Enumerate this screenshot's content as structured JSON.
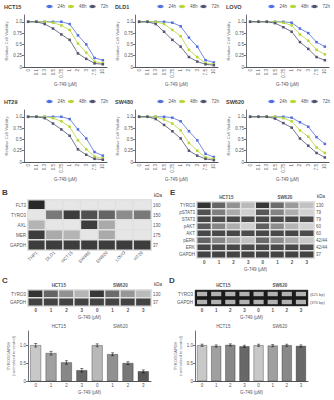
{
  "chart_data": [
    {
      "type": "line",
      "title": "HCT15",
      "categories": [
        "0",
        "0.1",
        "0.3",
        "0.5",
        "0.75",
        "1",
        "2",
        "3",
        "7.5",
        "10"
      ],
      "series": [
        {
          "name": "24h",
          "values": [
            1.0,
            1.0,
            1.0,
            1.0,
            1.0,
            0.95,
            0.7,
            0.5,
            0.2,
            0.15
          ]
        },
        {
          "name": "48h",
          "values": [
            1.0,
            1.0,
            1.0,
            0.98,
            0.92,
            0.82,
            0.52,
            0.32,
            0.12,
            0.08
          ]
        },
        {
          "name": "72h",
          "values": [
            1.0,
            1.0,
            0.95,
            0.85,
            0.72,
            0.6,
            0.3,
            0.18,
            0.08,
            0.06
          ]
        }
      ],
      "xlabel": "G-749 (μM)",
      "ylabel": "Relative Cell Viability",
      "ylim": [
        0,
        1.15
      ],
      "yticks": [
        0,
        0.25,
        0.5,
        0.75,
        {
          "value": 1,
          "label": "1.0"
        }
      ],
      "legend": "upper right",
      "marker": "square",
      "grid": false
    },
    {
      "type": "line",
      "title": "DLD1",
      "categories": [
        "0",
        "0.1",
        "0.3",
        "0.5",
        "0.75",
        "1",
        "2",
        "3",
        "7.5",
        "10"
      ],
      "series": [
        {
          "name": "24h",
          "values": [
            1.0,
            1.0,
            1.0,
            1.0,
            0.98,
            0.9,
            0.65,
            0.45,
            0.15,
            0.1
          ]
        },
        {
          "name": "48h",
          "values": [
            1.0,
            1.0,
            1.0,
            0.95,
            0.82,
            0.68,
            0.38,
            0.22,
            0.08,
            0.06
          ]
        },
        {
          "name": "72h",
          "values": [
            1.0,
            1.0,
            0.95,
            0.78,
            0.6,
            0.45,
            0.22,
            0.12,
            0.06,
            0.04
          ]
        }
      ],
      "xlabel": "G-749 (μM)",
      "ylabel": "Relative Cell Viability",
      "ylim": [
        0,
        1.15
      ],
      "yticks": [
        0,
        0.25,
        0.5,
        0.75,
        {
          "value": 1,
          "label": "1.0"
        }
      ],
      "legend": "upper right",
      "marker": "square",
      "grid": false
    },
    {
      "type": "line",
      "title": "LOVO",
      "categories": [
        "0",
        "0.1",
        "0.3",
        "0.5",
        "0.75",
        "1",
        "2",
        "3",
        "7.5",
        "10"
      ],
      "series": [
        {
          "name": "24h",
          "values": [
            1.0,
            1.0,
            1.0,
            1.0,
            1.0,
            0.98,
            0.85,
            0.75,
            0.55,
            0.45
          ]
        },
        {
          "name": "48h",
          "values": [
            1.0,
            1.0,
            1.0,
            1.0,
            0.98,
            0.92,
            0.72,
            0.58,
            0.38,
            0.28
          ]
        },
        {
          "name": "72h",
          "values": [
            1.0,
            1.0,
            1.0,
            0.97,
            0.88,
            0.78,
            0.55,
            0.4,
            0.22,
            0.15
          ]
        }
      ],
      "xlabel": "G-749 (μM)",
      "ylabel": "Relative Cell Viability",
      "ylim": [
        0,
        1.15
      ],
      "yticks": [
        0,
        0.25,
        0.5,
        0.75,
        {
          "value": 1,
          "label": "1.0"
        }
      ],
      "legend": "upper right",
      "marker": "square",
      "grid": false
    },
    {
      "type": "line",
      "title": "HT29",
      "categories": [
        "0",
        "0.1",
        "0.3",
        "0.5",
        "0.75",
        "1",
        "2",
        "3",
        "7.5",
        "10"
      ],
      "series": [
        {
          "name": "24h",
          "values": [
            1.0,
            1.0,
            1.0,
            1.0,
            1.0,
            0.95,
            0.72,
            0.52,
            0.22,
            0.14
          ]
        },
        {
          "name": "48h",
          "values": [
            1.0,
            1.0,
            1.0,
            0.97,
            0.9,
            0.78,
            0.48,
            0.28,
            0.12,
            0.08
          ]
        },
        {
          "name": "72h",
          "values": [
            1.0,
            1.0,
            0.97,
            0.85,
            0.72,
            0.58,
            0.28,
            0.16,
            0.07,
            0.05
          ]
        }
      ],
      "xlabel": "G-749 (μM)",
      "ylabel": "Relative Cell Viability",
      "ylim": [
        0,
        1.15
      ],
      "yticks": [
        0,
        0.25,
        0.5,
        0.75,
        {
          "value": 1,
          "label": "1.0"
        }
      ],
      "legend": "upper right",
      "marker": "square",
      "grid": false
    },
    {
      "type": "line",
      "title": "SW480",
      "categories": [
        "0",
        "0.1",
        "0.3",
        "0.5",
        "0.75",
        "1",
        "2",
        "3",
        "7.5",
        "10"
      ],
      "series": [
        {
          "name": "24h",
          "values": [
            1.0,
            1.0,
            1.0,
            1.0,
            0.98,
            0.9,
            0.68,
            0.48,
            0.18,
            0.11
          ]
        },
        {
          "name": "48h",
          "values": [
            1.0,
            1.0,
            1.0,
            0.94,
            0.85,
            0.7,
            0.42,
            0.25,
            0.1,
            0.07
          ]
        },
        {
          "name": "72h",
          "values": [
            1.0,
            1.0,
            0.95,
            0.82,
            0.68,
            0.52,
            0.25,
            0.14,
            0.07,
            0.04
          ]
        }
      ],
      "xlabel": "G-749 (μM)",
      "ylabel": "Relative Cell Viability",
      "ylim": [
        0,
        1.15
      ],
      "yticks": [
        0,
        0.25,
        0.5,
        0.75,
        {
          "value": 1,
          "label": "1.0"
        }
      ],
      "legend": "upper right",
      "marker": "square",
      "grid": false
    },
    {
      "type": "line",
      "title": "SW620",
      "categories": [
        "0",
        "0.1",
        "0.3",
        "0.5",
        "0.75",
        "1",
        "2",
        "3",
        "7.5",
        "10"
      ],
      "series": [
        {
          "name": "24h",
          "values": [
            1.0,
            1.0,
            1.0,
            1.0,
            1.0,
            0.98,
            0.88,
            0.78,
            0.55,
            0.4
          ]
        },
        {
          "name": "48h",
          "values": [
            1.0,
            1.0,
            1.0,
            1.0,
            0.97,
            0.9,
            0.7,
            0.56,
            0.32,
            0.2
          ]
        },
        {
          "name": "72h",
          "values": [
            1.0,
            1.0,
            1.0,
            0.96,
            0.86,
            0.76,
            0.52,
            0.36,
            0.2,
            0.1
          ]
        }
      ],
      "xlabel": "G-749 (μM)",
      "ylabel": "Relative Cell Viability",
      "ylim": [
        0,
        1.15
      ],
      "yticks": [
        0,
        0.25,
        0.5,
        0.75,
        {
          "value": 1,
          "label": "1.0"
        }
      ],
      "legend": "upper right",
      "marker": "square",
      "grid": false
    },
    {
      "type": "heatmap",
      "panel_label": "B",
      "x": [
        "THP1",
        "DLD1",
        "HCT15",
        "SW480",
        "SW620",
        "LOVO",
        "HT29"
      ],
      "y": [
        "FLT3",
        "TYRO3",
        "AXL",
        "MER",
        "GAPDH"
      ],
      "values": [
        [
          0.95,
          0.0,
          0.0,
          0.0,
          0.0,
          0.0,
          0.0
        ],
        [
          0.0,
          0.55,
          0.85,
          0.75,
          0.65,
          0.45,
          0.55
        ],
        [
          0.25,
          0.0,
          0.0,
          0.85,
          0.3,
          0.0,
          0.0
        ],
        [
          0.85,
          0.3,
          0.25,
          0.0,
          0.3,
          0.0,
          0.0
        ],
        [
          0.85,
          0.85,
          0.85,
          0.85,
          0.85,
          0.85,
          0.85
        ]
      ],
      "right_labels": [
        "160",
        "150",
        "130",
        "175",
        "37"
      ],
      "right_title": "kDa",
      "zlim": [
        0,
        1
      ]
    },
    {
      "type": "heatmap",
      "panel_label": "C",
      "x": [
        "0",
        "1",
        "2",
        "3",
        "0",
        "1",
        "2",
        "3"
      ],
      "groups": [
        "HCT15",
        "SW620"
      ],
      "y": [
        "TYRO3",
        "GAPDH"
      ],
      "values": [
        [
          0.9,
          0.65,
          0.42,
          0.25,
          0.88,
          0.62,
          0.4,
          0.22
        ],
        [
          0.82,
          0.82,
          0.82,
          0.82,
          0.82,
          0.82,
          0.82,
          0.82
        ]
      ],
      "right_labels": [
        "130",
        "37"
      ],
      "right_title": "kDa",
      "xlabel": "G-749 (μM)",
      "zlim": [
        0,
        1
      ]
    },
    {
      "type": "bar",
      "categories": [
        "0",
        "1",
        "2",
        "3",
        "0",
        "1",
        "2",
        "3"
      ],
      "groups": [
        "HCT15",
        "SW620"
      ],
      "values": [
        1.0,
        0.78,
        0.52,
        0.3,
        1.0,
        0.75,
        0.5,
        0.27
      ],
      "errors": [
        0.05,
        0.05,
        0.05,
        0.05,
        0.04,
        0.04,
        0.04,
        0.04
      ],
      "colors": [
        "#c8c8c8",
        "#a0a0a0",
        "#888888",
        "#686868",
        "#b8b8b8",
        "#909090",
        "#787878",
        "#585858"
      ],
      "xlabel": "G-749 (μM)",
      "ylabel": "TYRO3/GAPDH\n(normalized to control)",
      "ylim": [
        0,
        1.4
      ],
      "yticks": [
        0,
        0.5,
        {
          "value": 1,
          "label": "1.0"
        }
      ],
      "grid": false
    },
    {
      "type": "gel",
      "panel_label": "D",
      "x": [
        "0",
        "1",
        "2",
        "3",
        "0",
        "1",
        "2",
        "3"
      ],
      "groups": [
        "HCT15",
        "SW620"
      ],
      "y": [
        "TYRO3",
        "GAPDH"
      ],
      "right_labels": [
        "(621 bp)",
        "(370 bp)"
      ],
      "xlabel": "G-749 (μM)"
    },
    {
      "type": "bar",
      "categories": [
        "0",
        "1",
        "2",
        "3",
        "0",
        "1",
        "2",
        "3"
      ],
      "groups": [
        "HCT15",
        "SW620"
      ],
      "values": [
        1.0,
        0.98,
        1.01,
        0.97,
        1.0,
        0.99,
        1.0,
        0.98
      ],
      "errors": [
        0.03,
        0.03,
        0.03,
        0.03,
        0.03,
        0.03,
        0.03,
        0.03
      ],
      "colors": [
        "#c8c8c8",
        "#a0a0a0",
        "#888888",
        "#686868",
        "#c8c8c8",
        "#a0a0a0",
        "#888888",
        "#686868"
      ],
      "xlabel": "G-749 (μM)",
      "ylabel": "TYRO3/GAPDH\n(normalized to control)",
      "ylim": [
        0,
        1.4
      ],
      "yticks": [
        0,
        0.5,
        {
          "value": 1,
          "label": "1.0"
        }
      ],
      "grid": false
    },
    {
      "type": "heatmap",
      "panel_label": "E",
      "x": [
        "0",
        "1",
        "2",
        "3",
        "0",
        "1",
        "2",
        "3"
      ],
      "groups": [
        "HCT15",
        "SW620"
      ],
      "y": [
        "TYRO3",
        "pSTAT3",
        "STAT3",
        "pAKT",
        "AKT",
        "pERK",
        "ERK",
        "GAPDH"
      ],
      "values": [
        [
          0.9,
          0.65,
          0.42,
          0.22,
          0.88,
          0.62,
          0.38,
          0.18
        ],
        [
          0.75,
          0.52,
          0.3,
          0.12,
          0.72,
          0.5,
          0.28,
          0.1
        ],
        [
          0.8,
          0.78,
          0.8,
          0.79,
          0.8,
          0.79,
          0.8,
          0.78
        ],
        [
          0.7,
          0.48,
          0.28,
          0.12,
          0.68,
          0.45,
          0.25,
          0.1
        ],
        [
          0.8,
          0.79,
          0.8,
          0.78,
          0.8,
          0.79,
          0.8,
          0.78
        ],
        [
          0.65,
          0.48,
          0.32,
          0.18,
          0.62,
          0.45,
          0.3,
          0.15
        ],
        [
          0.8,
          0.79,
          0.8,
          0.78,
          0.8,
          0.79,
          0.8,
          0.78
        ],
        [
          0.82,
          0.82,
          0.82,
          0.82,
          0.82,
          0.82,
          0.82,
          0.82
        ]
      ],
      "right_labels": [
        "130",
        "79",
        "79",
        "60",
        "60",
        "42/44",
        "42/44",
        "37"
      ],
      "right_title": "kDa",
      "xlabel": "G-749 (μM)",
      "zlim": [
        0,
        1
      ]
    }
  ]
}
